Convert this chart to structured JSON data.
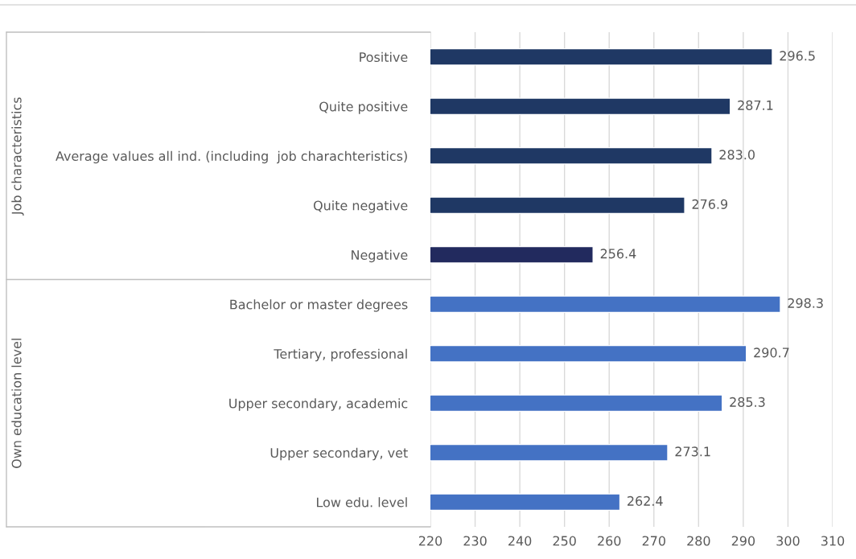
{
  "chart_data": {
    "type": "bar",
    "orientation": "horizontal",
    "categories": [
      "Positive",
      "Quite positive",
      "Average values all ind. (including  job charachteristics)",
      "Quite negative",
      "Negative",
      "Bachelor or master degrees",
      "Tertiary, professional",
      "Upper secondary, academic",
      "Upper secondary, vet",
      "Low edu. level"
    ],
    "values": [
      296.5,
      287.1,
      283.0,
      276.9,
      256.4,
      298.3,
      290.7,
      285.3,
      273.1,
      262.4
    ],
    "colors": [
      "#1f3864",
      "#1f3864",
      "#1f3864",
      "#1f3864",
      "#222a5e",
      "#4472c4",
      "#4472c4",
      "#4472c4",
      "#4472c4",
      "#4472c4"
    ],
    "value_labels": [
      "296.5",
      "287.1",
      "283.0",
      "276.9",
      "256.4",
      "298.3",
      "290.7",
      "285.3",
      "273.1",
      "262.4"
    ],
    "xlim": [
      220,
      310
    ],
    "xticks": [
      220,
      230,
      240,
      250,
      260,
      270,
      280,
      290,
      300,
      310
    ],
    "grid": "x",
    "annotations": [
      "Job characteristics",
      "Own education level"
    ]
  }
}
